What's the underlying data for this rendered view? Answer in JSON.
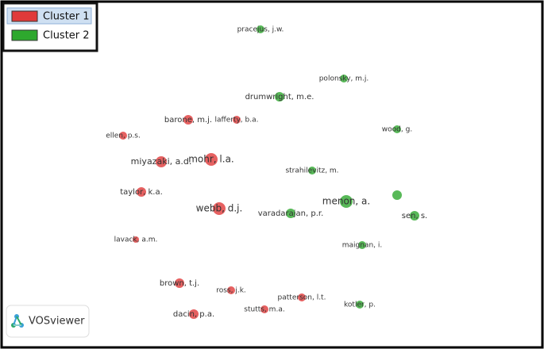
{
  "legend": {
    "items": [
      "Cluster 1",
      "Cluster 2"
    ]
  },
  "clusters": [
    {
      "nodes": [
        "barone, m.j.",
        "lafferty, b.a.",
        "ellen, p.s.",
        "miyazaki, a.d.",
        "mohr, l.a.",
        "taylor, k.a.",
        "webb, d.j.",
        "lavack, a.m.",
        "brown, t.j.",
        "ross, j.k.",
        "patterson, l.t.",
        "stutts, m.a.",
        "dacin, p.a."
      ]
    },
    {
      "nodes": [
        "pracejus, j.w.",
        "polonsky, m.j.",
        "drumwright, m.e.",
        "wood, g.",
        "strahilevitz, m.",
        "menon, a.",
        "varadarajan, p.r.",
        "sen, s.",
        "maignan, i.",
        "kotler, p."
      ]
    }
  ],
  "brand": "VOSviewer"
}
